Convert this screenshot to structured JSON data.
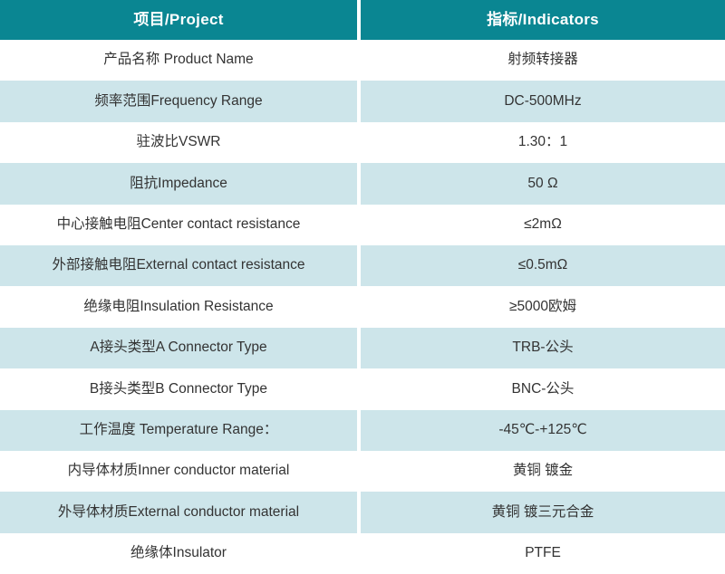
{
  "table": {
    "columns": [
      {
        "label": "项目/Project"
      },
      {
        "label": "指标/Indicators"
      }
    ],
    "rows": [
      {
        "project": "产品名称 Product Name",
        "indicator": "射频转接器"
      },
      {
        "project": "频率范围Frequency Range",
        "indicator": "DC-500MHz"
      },
      {
        "project": "驻波比VSWR",
        "indicator": "1.30：1"
      },
      {
        "project": "阻抗Impedance",
        "indicator": "50 Ω"
      },
      {
        "project": "中心接触电阻Center contact resistance",
        "indicator": "≤2mΩ"
      },
      {
        "project": "外部接触电阻External contact resistance",
        "indicator": "≤0.5mΩ"
      },
      {
        "project": "绝缘电阻Insulation Resistance",
        "indicator": "≥5000欧姆"
      },
      {
        "project": "A接头类型A Connector Type",
        "indicator": "TRB-公头"
      },
      {
        "project": "B接头类型B Connector Type",
        "indicator": "BNC-公头"
      },
      {
        "project": "工作温度 Temperature Range：",
        "indicator": "-45℃-+125℃"
      },
      {
        "project": "内导体材质Inner conductor material",
        "indicator": "黄铜 镀金"
      },
      {
        "project": "外导体材质External conductor material",
        "indicator": "黄铜 镀三元合金"
      },
      {
        "project": "绝缘体Insulator",
        "indicator": "PTFE"
      }
    ],
    "colors": {
      "header_bg": "#0a8692",
      "header_text": "#ffffff",
      "row_bg": "#ffffff",
      "row_alt_bg": "#cde5ea",
      "body_text": "#333333",
      "divider": "#ffffff"
    }
  }
}
